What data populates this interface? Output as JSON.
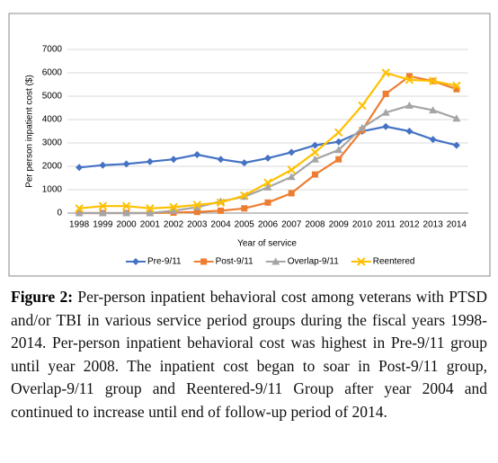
{
  "chart_data": {
    "type": "line",
    "ylabel": "Per person inpatient cost ($)",
    "xlabel": "Year of service",
    "categories": [
      "1998",
      "1999",
      "2000",
      "2001",
      "2002",
      "2003",
      "2004",
      "2005",
      "2006",
      "2007",
      "2008",
      "2009",
      "2010",
      "2011",
      "2012",
      "2013",
      "2014"
    ],
    "series": [
      {
        "name": "Pre-9/11",
        "color": "#4472c4",
        "marker": "diamond",
        "values": [
          1950,
          2050,
          2100,
          2200,
          2300,
          2500,
          2300,
          2150,
          2350,
          2600,
          2900,
          3050,
          3500,
          3700,
          3500,
          3150,
          2900
        ]
      },
      {
        "name": "Post-9/11",
        "color": "#ed7d31",
        "marker": "square",
        "values": [
          0,
          0,
          0,
          0,
          20,
          50,
          100,
          200,
          450,
          850,
          1650,
          2300,
          3550,
          5100,
          5850,
          5650,
          5300
        ]
      },
      {
        "name": "Overlap-9/11",
        "color": "#a5a5a5",
        "marker": "triangle",
        "values": [
          0,
          0,
          0,
          0,
          100,
          250,
          500,
          700,
          1100,
          1550,
          2300,
          2700,
          3650,
          4300,
          4600,
          4400,
          4050
        ]
      },
      {
        "name": "Reentered",
        "color": "#ffc000",
        "marker": "x",
        "values": [
          200,
          300,
          300,
          200,
          250,
          350,
          450,
          750,
          1300,
          1850,
          2600,
          3450,
          4600,
          6000,
          5700,
          5650,
          5450
        ]
      }
    ],
    "ylim": [
      0,
      7000
    ],
    "yticks": [
      0,
      1000,
      2000,
      3000,
      4000,
      5000,
      6000,
      7000
    ],
    "grid": true,
    "legend": "bottom"
  },
  "caption": {
    "label": "Figure 2:",
    "text": "Per-person inpatient behavioral cost among veterans with PTSD and/or TBI in various service period groups during the fiscal years 1998-2014. Per-person inpatient behavioral cost was highest in Pre-9/11 group until year 2008. The inpatient cost began to soar in Post-9/11 group, Overlap-9/11 group and Reentered-9/11 Group after year 2004 and continued to increase until end of follow-up period of 2014."
  }
}
